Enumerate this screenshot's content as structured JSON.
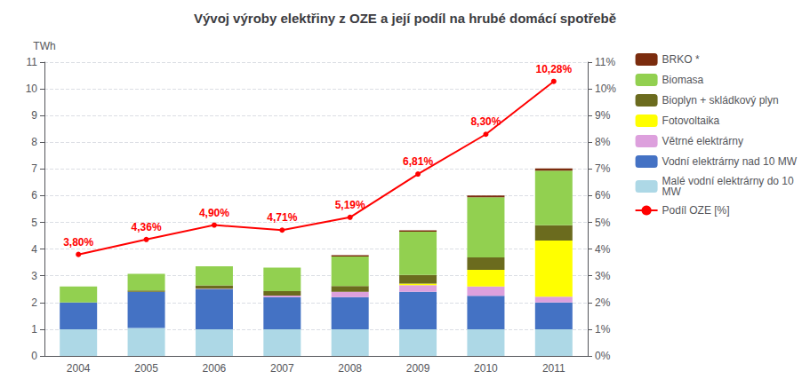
{
  "chart_data": {
    "type": "bar",
    "title": "Vývoj výroby elektřiny z OZE a její podíl na hrubé domácí spotřebě",
    "y_label": "TWh",
    "categories": [
      "2004",
      "2005",
      "2006",
      "2007",
      "2008",
      "2009",
      "2010",
      "2011"
    ],
    "stacked": true,
    "grid": true,
    "legend": "right",
    "series": [
      {
        "name": "Malé vodní elektrárny do 10\nMW",
        "color": "#add8e6",
        "values": [
          1.0,
          1.05,
          1.0,
          1.0,
          1.0,
          1.0,
          1.0,
          1.0
        ]
      },
      {
        "name": "Vodní elektrárny nad 10 MW",
        "color": "#4472c4",
        "values": [
          1.0,
          1.35,
          1.5,
          1.2,
          1.2,
          1.4,
          1.25,
          1.0
        ]
      },
      {
        "name": "Větrné elektrárny",
        "color": "#dda0dd",
        "values": [
          0.0,
          0.0,
          0.02,
          0.06,
          0.2,
          0.25,
          0.35,
          0.22
        ]
      },
      {
        "name": "Fotovoltaika",
        "color": "#ffff00",
        "values": [
          0.0,
          0.0,
          0.0,
          0.0,
          0.0,
          0.06,
          0.62,
          2.1
        ]
      },
      {
        "name": "Bioplyn + skládkový plyn",
        "color": "#6b6b1e",
        "values": [
          0.0,
          0.05,
          0.12,
          0.17,
          0.22,
          0.32,
          0.47,
          0.57
        ]
      },
      {
        "name": "Biomasa",
        "color": "#92d050",
        "values": [
          0.6,
          0.62,
          0.72,
          0.88,
          1.1,
          1.62,
          2.25,
          2.05
        ]
      },
      {
        "name": "BRKO *",
        "color": "#7b2c0e",
        "values": [
          0.0,
          0.0,
          0.0,
          0.0,
          0.05,
          0.05,
          0.07,
          0.08
        ]
      },
      {
        "name": "Podíl OZE [%]",
        "type": "line",
        "axis": "y2",
        "color": "#ff0000",
        "marker": "circle",
        "data_labels": true,
        "values": [
          3.8,
          4.36,
          4.9,
          4.71,
          5.19,
          6.81,
          8.3,
          10.28
        ],
        "value_labels": [
          "3,80%",
          "4,36%",
          "4,90%",
          "4,71%",
          "5,19%",
          "6,81%",
          "8,30%",
          "10,28%"
        ]
      }
    ],
    "ylim": [
      0,
      11
    ],
    "yticks": [
      0,
      1,
      2,
      3,
      4,
      5,
      6,
      7,
      8,
      9,
      10,
      11
    ],
    "y2lim": [
      0,
      11
    ],
    "y2ticks": [
      {
        "value": 0,
        "label": "0%"
      },
      {
        "value": 1,
        "label": "1%"
      },
      {
        "value": 2,
        "label": "2%"
      },
      {
        "value": 3,
        "label": "3%"
      },
      {
        "value": 4,
        "label": "4%"
      },
      {
        "value": 5,
        "label": "5%"
      },
      {
        "value": 6,
        "label": "6%"
      },
      {
        "value": 7,
        "label": "7%"
      },
      {
        "value": 8,
        "label": "8%"
      },
      {
        "value": 9,
        "label": "9%"
      },
      {
        "value": 10,
        "label": "10%"
      },
      {
        "value": 11,
        "label": "11%"
      }
    ]
  }
}
